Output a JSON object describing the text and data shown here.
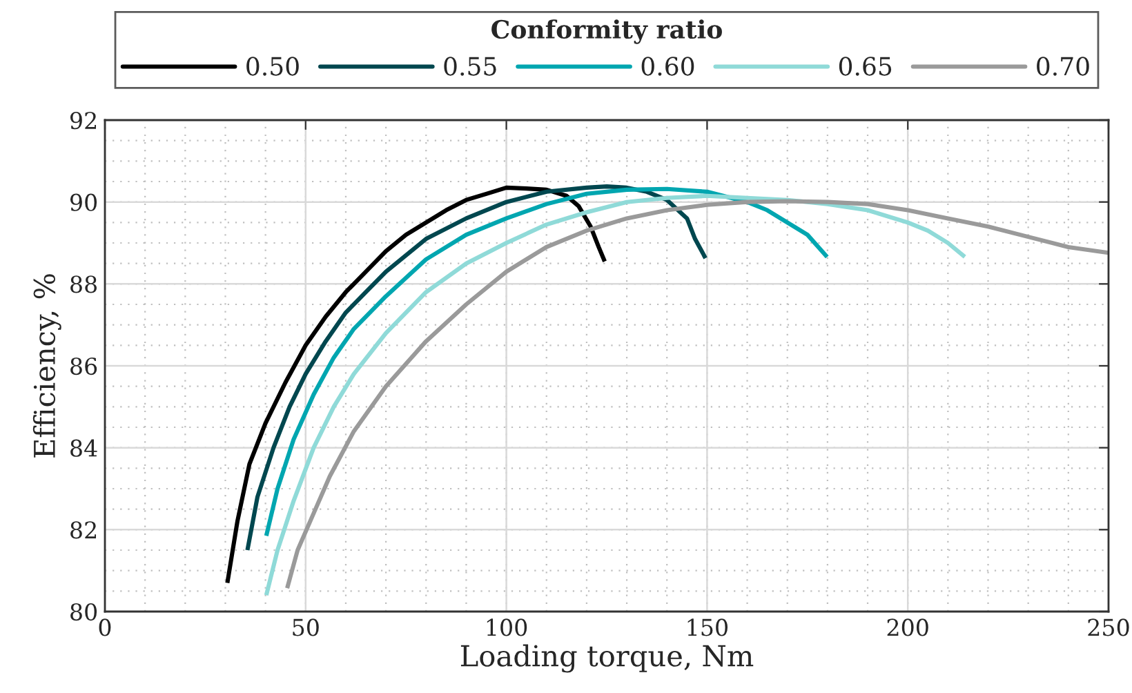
{
  "chart_data": {
    "type": "line",
    "xlabel": "Loading torque, Nm",
    "ylabel": "Efficiency, %",
    "legend_title": "Conformity ratio",
    "legend": "top",
    "xlim": [
      0,
      250
    ],
    "xticks": [
      0,
      50,
      100,
      150,
      200,
      250
    ],
    "ylim": [
      80,
      92
    ],
    "yticks": [
      80,
      82,
      84,
      86,
      88,
      90,
      92
    ],
    "grid": true,
    "line_style": "solid",
    "marker": "none",
    "series": [
      {
        "name": "0.50",
        "color": "#000000",
        "x": [
          30.5,
          33,
          36,
          40,
          45,
          50,
          55,
          60,
          65,
          70,
          75,
          80,
          85,
          90,
          95,
          100,
          105,
          110,
          115,
          118,
          121,
          123,
          124.5
        ],
        "values": [
          80.7,
          82.2,
          83.6,
          84.6,
          85.6,
          86.5,
          87.2,
          87.8,
          88.3,
          88.8,
          89.2,
          89.5,
          89.8,
          90.05,
          90.2,
          90.35,
          90.33,
          90.3,
          90.15,
          89.9,
          89.4,
          88.9,
          88.55
        ]
      },
      {
        "name": "0.55",
        "color": "#00474f",
        "x": [
          35.5,
          38,
          42,
          46,
          50,
          55,
          60,
          65,
          70,
          80,
          90,
          100,
          110,
          120,
          125,
          130,
          135,
          140,
          145,
          147,
          149.6
        ],
        "values": [
          81.5,
          82.8,
          84,
          85,
          85.8,
          86.6,
          87.3,
          87.8,
          88.3,
          89.1,
          89.6,
          90,
          90.25,
          90.35,
          90.38,
          90.35,
          90.25,
          90.05,
          89.6,
          89.1,
          88.63
        ]
      },
      {
        "name": "0.60",
        "color": "#00a6b0",
        "x": [
          40.2,
          43,
          47,
          52,
          57,
          62,
          70,
          80,
          90,
          100,
          110,
          120,
          130,
          140,
          150,
          160,
          165,
          170,
          175,
          179.9
        ],
        "values": [
          81.85,
          83,
          84.2,
          85.3,
          86.2,
          86.9,
          87.7,
          88.6,
          89.2,
          89.6,
          89.95,
          90.2,
          90.3,
          90.32,
          90.25,
          90,
          89.8,
          89.5,
          89.2,
          88.66
        ]
      },
      {
        "name": "0.65",
        "color": "#8fdad8",
        "x": [
          40.2,
          43,
          47,
          52,
          57,
          62,
          70,
          80,
          90,
          100,
          110,
          120,
          130,
          140,
          150,
          160,
          170,
          180,
          190,
          200,
          205,
          210,
          214.2
        ],
        "values": [
          80.4,
          81.5,
          82.7,
          84,
          85,
          85.8,
          86.8,
          87.8,
          88.5,
          89,
          89.45,
          89.75,
          90,
          90.1,
          90.15,
          90.1,
          90.05,
          89.95,
          89.8,
          89.5,
          89.3,
          89,
          88.66
        ]
      },
      {
        "name": "0.70",
        "color": "#9a9a9a",
        "x": [
          45.4,
          48,
          52,
          56,
          62,
          70,
          80,
          90,
          100,
          110,
          120,
          130,
          140,
          150,
          160,
          170,
          180,
          190,
          200,
          210,
          220,
          230,
          240,
          250
        ],
        "values": [
          80.57,
          81.5,
          82.4,
          83.3,
          84.4,
          85.5,
          86.6,
          87.5,
          88.3,
          88.9,
          89.3,
          89.6,
          89.8,
          89.93,
          90,
          90.02,
          90,
          89.95,
          89.8,
          89.6,
          89.4,
          89.15,
          88.9,
          88.76
        ]
      }
    ]
  }
}
